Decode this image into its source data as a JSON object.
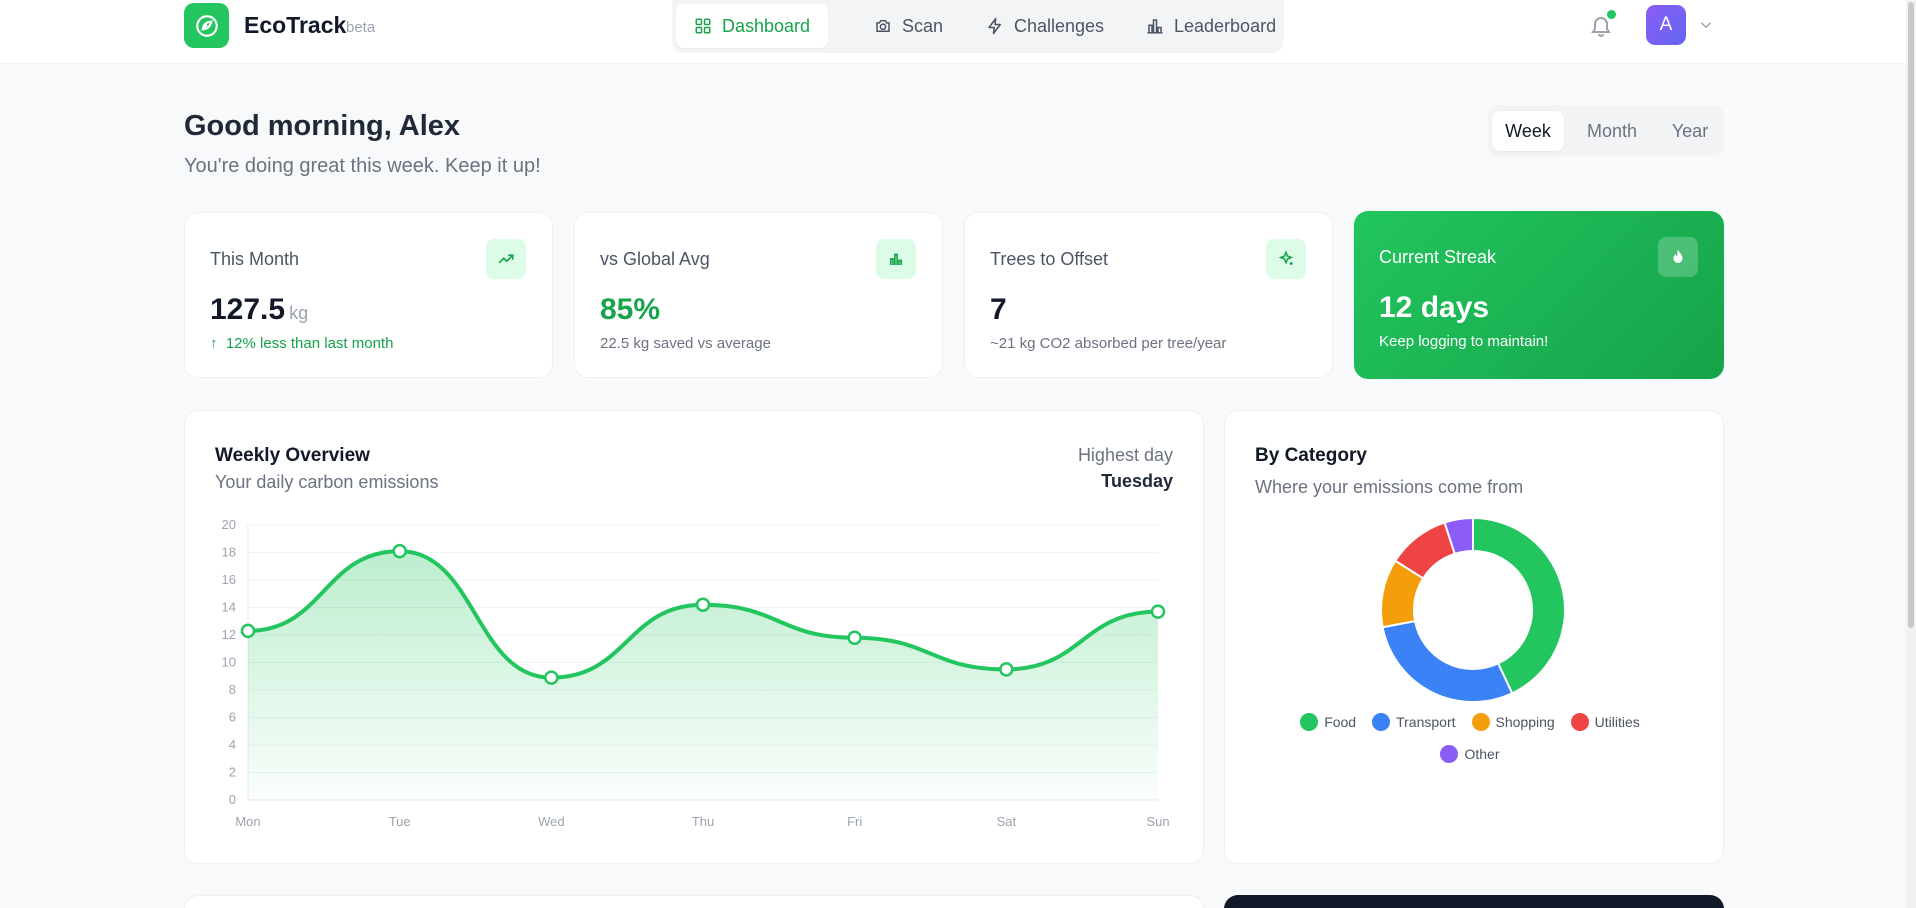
{
  "app": {
    "name": "EcoTrack",
    "badge": "beta"
  },
  "nav": {
    "items": [
      {
        "label": "Dashboard",
        "icon": "grid-icon",
        "active": true
      },
      {
        "label": "Scan",
        "icon": "camera-icon"
      },
      {
        "label": "Challenges",
        "icon": "lightning-icon"
      },
      {
        "label": "Leaderboard",
        "icon": "bar-chart-icon"
      }
    ]
  },
  "user": {
    "initial": "A",
    "has_notifications": true
  },
  "greeting": {
    "title": "Good morning, Alex",
    "subtitle": "You're doing great this week. Keep it up!"
  },
  "period": {
    "options": [
      "Week",
      "Month",
      "Year"
    ],
    "selected": "Week"
  },
  "stats": [
    {
      "label": "This Month",
      "value": "127.5",
      "unit": "kg",
      "note": "12% less than last month",
      "icon": "trending-up-icon"
    },
    {
      "label": "vs Global Avg",
      "value": "85%",
      "note": "22.5 kg saved vs average",
      "icon": "bar-chart-icon"
    },
    {
      "label": "Trees to Offset",
      "value": "7",
      "note": "~21 kg CO2 absorbed per tree/year",
      "icon": "sparkle-icon"
    },
    {
      "label": "Current Streak",
      "value": "12 days",
      "note": "Keep logging to maintain!",
      "icon": "flame-icon"
    }
  ],
  "weekly": {
    "title": "Weekly Overview",
    "subtitle": "Your daily carbon emissions",
    "highest_label": "Highest day",
    "highest_value": "Tuesday"
  },
  "category": {
    "title": "By Category",
    "subtitle": "Where your emissions come from"
  },
  "colors": {
    "accent": "#22c55e",
    "accent_dark": "#16a34a"
  },
  "chart_data": [
    {
      "type": "area",
      "categories": [
        "Mon",
        "Tue",
        "Wed",
        "Thu",
        "Fri",
        "Sat",
        "Sun"
      ],
      "values": [
        12.3,
        18.1,
        8.9,
        14.2,
        11.8,
        9.5,
        13.7
      ],
      "yticks": [
        0,
        2,
        4,
        6,
        8,
        10,
        12,
        14,
        16,
        18,
        20
      ],
      "ylim": [
        0,
        20
      ],
      "grid": true,
      "color": "#22c55e"
    },
    {
      "type": "pie",
      "donut": true,
      "labels": [
        "Food",
        "Transport",
        "Shopping",
        "Utilities",
        "Other"
      ],
      "values": [
        43,
        29,
        12,
        11,
        5
      ],
      "colors": [
        "#22c55e",
        "#3b82f6",
        "#f59e0b",
        "#ef4444",
        "#8b5cf6"
      ],
      "legend": "bottom"
    }
  ]
}
